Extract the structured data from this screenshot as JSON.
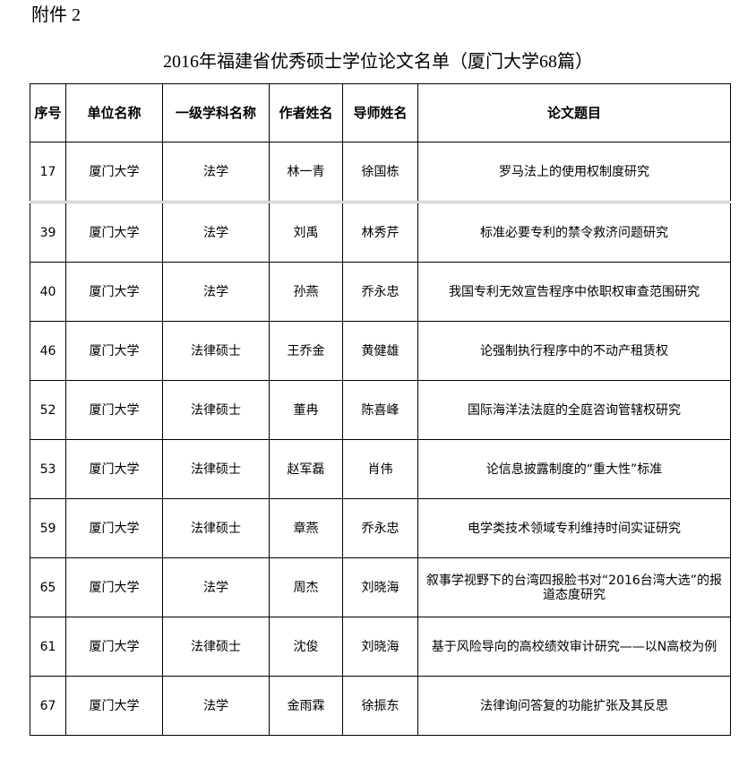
{
  "attachment_label": "附件 2",
  "title": "2016年福建省优秀硕士学位论文名单（厦门大学68篇）",
  "columns": [
    "序号",
    "单位名称",
    "一级学科名称",
    "作者姓名",
    "导师姓名",
    "论文题目"
  ],
  "rows": [
    [
      "17",
      "厦门大学",
      "法学",
      "林一青",
      "徐国栋",
      "罗马法上的使用权制度研究"
    ],
    [
      "39",
      "厦门大学",
      "法学",
      "刘禹",
      "林秀芹",
      "标准必要专利的禁令救济问题研究"
    ],
    [
      "40",
      "厦门大学",
      "法学",
      "孙燕",
      "乔永忠",
      "我国专利无效宣告程序中依职权审查范围研究"
    ],
    [
      "46",
      "厦门大学",
      "法律硕士",
      "王乔金",
      "黄健雄",
      "论强制执行程序中的不动产租赁权"
    ],
    [
      "52",
      "厦门大学",
      "法律硕士",
      "董冉",
      "陈喜峰",
      "国际海洋法法庭的全庭咨询管辖权研究"
    ],
    [
      "53",
      "厦门大学",
      "法律硕士",
      "赵军磊",
      "肖伟",
      "论信息披露制度的“重大性”标准"
    ],
    [
      "59",
      "厦门大学",
      "法律硕士",
      "章燕",
      "乔永忠",
      "电学类技术领域专利维持时间实证研究"
    ],
    [
      "65",
      "厦门大学",
      "法学",
      "周杰",
      "刘晓海",
      "叙事学视野下的台湾四报脸书对“2016台湾大选”的报道态度研究"
    ],
    [
      "61",
      "厦门大学",
      "法律硕士",
      "沈俊",
      "刘晓海",
      "基于风险导向的高校绩效审计研究——以N高校为例"
    ],
    [
      "67",
      "厦门大学",
      "法学",
      "金雨霖",
      "徐振东",
      "法律询问答复的功能扩张及其反思"
    ]
  ]
}
